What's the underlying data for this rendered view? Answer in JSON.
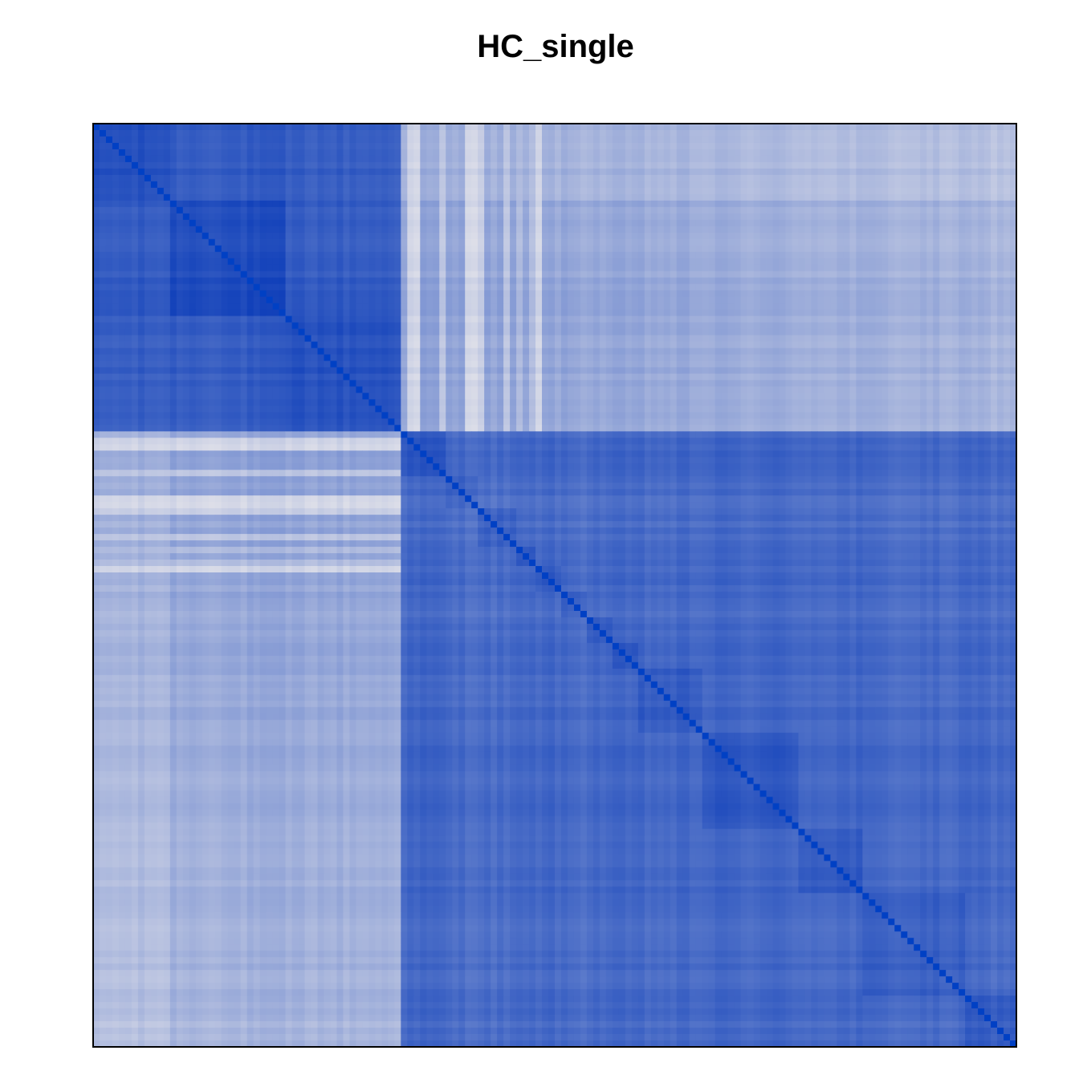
{
  "chart_data": {
    "type": "heatmap",
    "title": "HC_single",
    "xlabel": "",
    "ylabel": "",
    "n": 144,
    "colors": {
      "low": "#dfe0e9",
      "high": "#0a3bb8",
      "diagonal": "#0040c4",
      "border": "#000000"
    },
    "value_range": [
      0,
      1
    ],
    "diagonal_value": 1.0,
    "cluster_boundaries": [
      0,
      48,
      144
    ],
    "subgroup_boundaries": [
      0,
      12,
      30,
      48,
      55,
      60,
      66,
      69,
      73,
      77,
      81,
      85,
      95,
      110,
      120,
      136,
      144
    ],
    "block_similarity": {
      "within_cluster_1": 0.82,
      "within_cluster_2": 0.7,
      "between_clusters": 0.35
    },
    "low_similarity_members_cluster_2": [
      {
        "index": 49,
        "between_value": 0.06
      },
      {
        "index": 50,
        "between_value": 0.06
      },
      {
        "index": 54,
        "between_value": 0.15
      },
      {
        "index": 58,
        "between_value": 0.1
      },
      {
        "index": 59,
        "between_value": 0.08
      },
      {
        "index": 60,
        "between_value": 0.12
      },
      {
        "index": 64,
        "between_value": 0.18
      },
      {
        "index": 66,
        "between_value": 0.2
      },
      {
        "index": 68,
        "between_value": 0.18
      },
      {
        "index": 69,
        "between_value": 0.1
      }
    ],
    "grid": false,
    "legend": "none",
    "axes": "none"
  }
}
